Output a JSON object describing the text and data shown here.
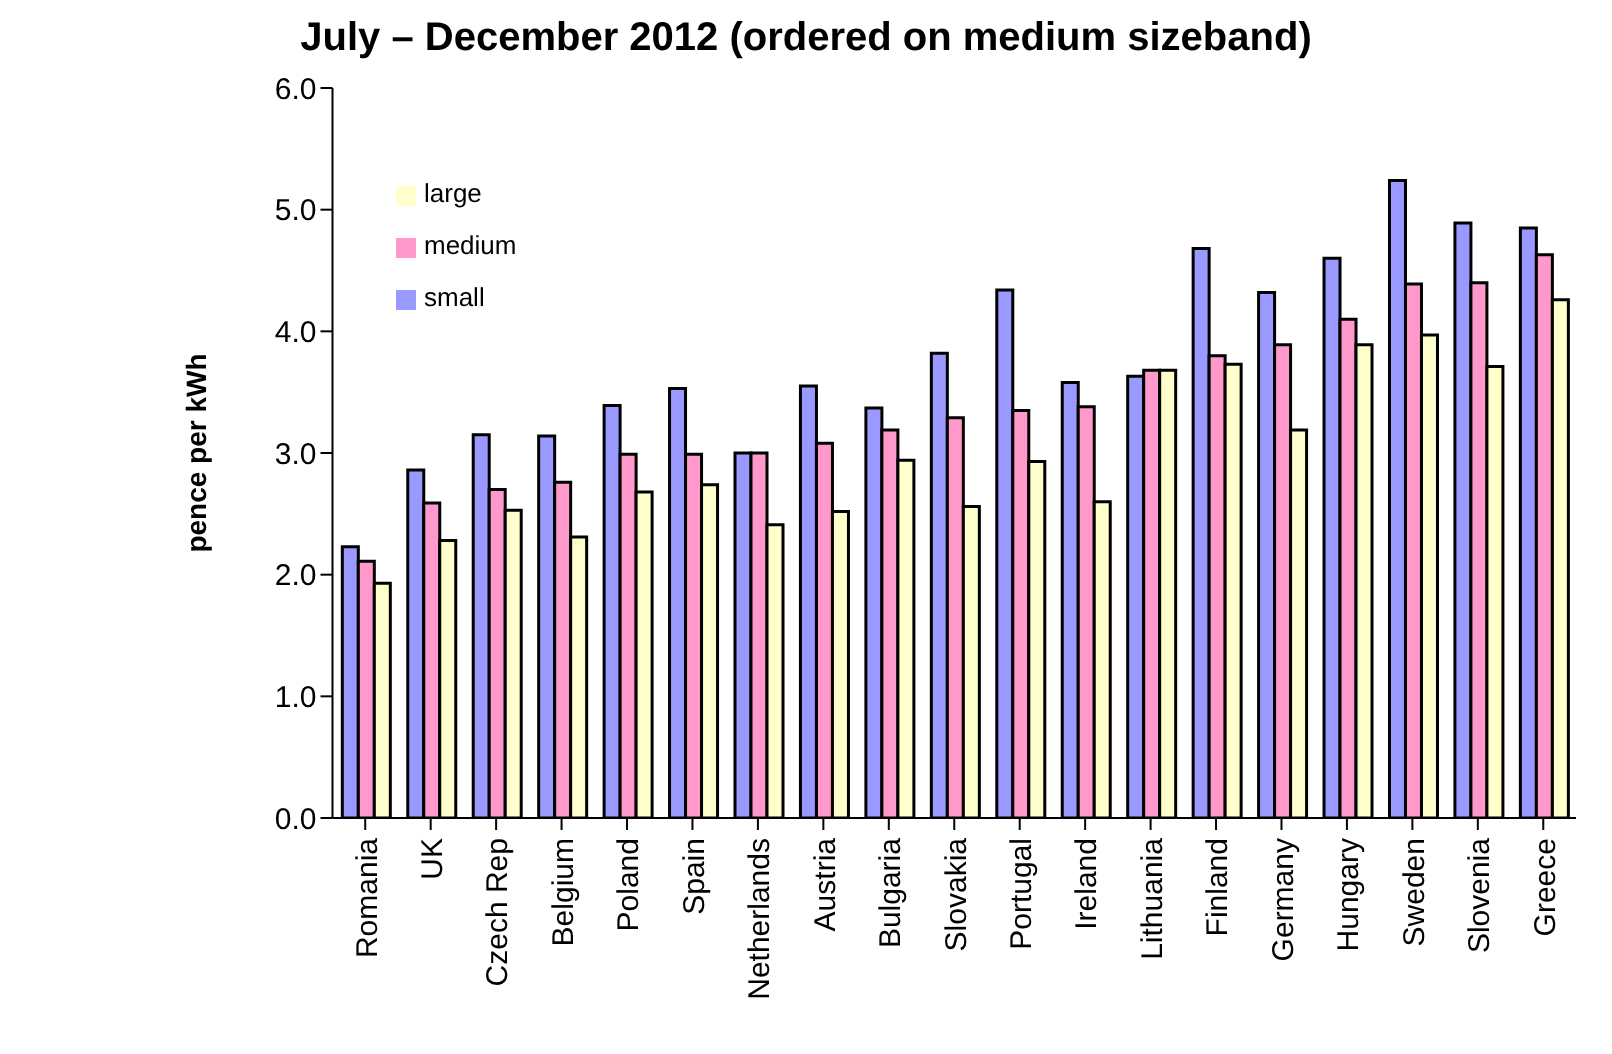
{
  "chart_data": {
    "type": "bar",
    "title": "July – December 2012 (ordered on medium sizeband)",
    "ylabel": "pence per kWh",
    "categories": [
      "Romania",
      "UK",
      "Czech Rep",
      "Belgium",
      "Poland",
      "Spain",
      "Netherlands",
      "Austria",
      "Bulgaria",
      "Slovakia",
      "Portugal",
      "Ireland",
      "Lithuania",
      "Finland",
      "Germany",
      "Hungary",
      "Sweden",
      "Slovenia",
      "Greece"
    ],
    "series": [
      {
        "name": "small",
        "color": "#9999ff",
        "values": [
          2.23,
          2.86,
          3.15,
          3.14,
          3.39,
          3.53,
          3.0,
          3.55,
          3.37,
          3.82,
          4.34,
          3.58,
          3.63,
          4.68,
          4.32,
          4.6,
          5.24,
          4.89,
          4.85
        ]
      },
      {
        "name": "medium",
        "color": "#ff99cc",
        "values": [
          2.11,
          2.59,
          2.7,
          2.76,
          2.99,
          2.99,
          3.0,
          3.08,
          3.19,
          3.29,
          3.35,
          3.38,
          3.68,
          3.8,
          3.89,
          4.1,
          4.39,
          4.4,
          4.63
        ]
      },
      {
        "name": "large",
        "color": "#ffffcc",
        "values": [
          1.93,
          2.28,
          2.53,
          2.31,
          2.68,
          2.74,
          2.41,
          2.52,
          2.94,
          2.56,
          2.93,
          2.6,
          3.68,
          3.73,
          3.19,
          3.89,
          3.97,
          3.71,
          4.26
        ]
      }
    ],
    "ylim": [
      0,
      6
    ],
    "yticks": [
      {
        "value": 0,
        "label": "0.0"
      },
      {
        "value": 1,
        "label": "1.0"
      },
      {
        "value": 2,
        "label": "2.0"
      },
      {
        "value": 3,
        "label": "3.0"
      },
      {
        "value": 4,
        "label": "4.0"
      },
      {
        "value": 5,
        "label": "5.0"
      },
      {
        "value": 6,
        "label": "6.0"
      }
    ],
    "grid": false,
    "legend": "top left"
  }
}
